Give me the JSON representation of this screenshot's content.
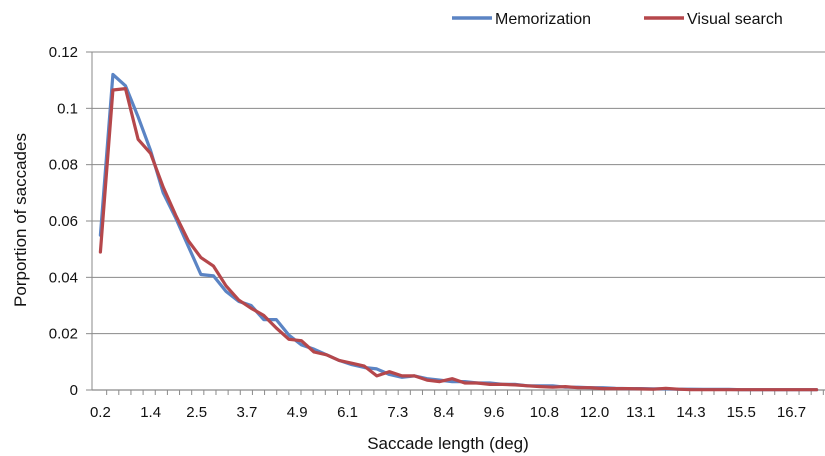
{
  "chart_data": {
    "type": "line",
    "title": "",
    "xlabel": "Saccade length (deg)",
    "ylabel": "Porportion of saccades",
    "ylim": [
      0,
      0.12
    ],
    "y_ticks": [
      "0",
      "0.02",
      "0.04",
      "0.06",
      "0.08",
      "0.1",
      "0.12"
    ],
    "x_tick_labels": [
      "0.2",
      "1.4",
      "2.5",
      "3.7",
      "4.9",
      "6.1",
      "7.3",
      "8.4",
      "9.6",
      "10.8",
      "12.0",
      "13.1",
      "14.3",
      "15.5",
      "16.7"
    ],
    "grid": true,
    "legend": "top-right",
    "x": [
      0.2,
      0.5,
      0.8,
      1.1,
      1.4,
      1.7,
      2.0,
      2.3,
      2.6,
      2.9,
      3.2,
      3.5,
      3.8,
      4.1,
      4.4,
      4.7,
      5.0,
      5.3,
      5.6,
      5.9,
      6.2,
      6.5,
      6.8,
      7.1,
      7.4,
      7.7,
      8.0,
      8.3,
      8.6,
      8.9,
      9.2,
      9.5,
      9.8,
      10.1,
      10.4,
      10.7,
      11.0,
      11.3,
      11.6,
      11.9,
      12.2,
      12.5,
      12.8,
      13.1,
      13.4,
      13.7,
      14.0,
      14.3,
      14.6,
      14.9,
      15.2,
      15.5,
      15.8,
      16.1,
      16.4,
      16.7,
      17.0,
      17.3
    ],
    "series": [
      {
        "name": "Memorization",
        "color": "#5b84c4",
        "values": [
          0.055,
          0.112,
          0.108,
          0.097,
          0.085,
          0.07,
          0.061,
          0.051,
          0.041,
          0.0405,
          0.035,
          0.0315,
          0.03,
          0.025,
          0.025,
          0.0195,
          0.016,
          0.0145,
          0.0125,
          0.0105,
          0.009,
          0.008,
          0.0075,
          0.0055,
          0.0045,
          0.005,
          0.004,
          0.0035,
          0.003,
          0.003,
          0.0025,
          0.0025,
          0.002,
          0.002,
          0.0015,
          0.0015,
          0.0015,
          0.001,
          0.001,
          0.0008,
          0.0008,
          0.0006,
          0.0005,
          0.0005,
          0.0004,
          0.0004,
          0.0003,
          0.0003,
          0.0002,
          0.0002,
          0.0002,
          0.0001,
          0.0001,
          0.0001,
          0.0001,
          0.0001,
          0.0001,
          0.0001
        ]
      },
      {
        "name": "Visual search",
        "color": "#b5474b",
        "values": [
          0.049,
          0.1065,
          0.107,
          0.089,
          0.084,
          0.072,
          0.062,
          0.053,
          0.047,
          0.044,
          0.037,
          0.032,
          0.029,
          0.0265,
          0.022,
          0.018,
          0.0175,
          0.0135,
          0.0125,
          0.0105,
          0.0095,
          0.0085,
          0.005,
          0.0065,
          0.005,
          0.005,
          0.0035,
          0.003,
          0.004,
          0.0025,
          0.0025,
          0.002,
          0.002,
          0.0018,
          0.0015,
          0.0012,
          0.001,
          0.0012,
          0.0008,
          0.0008,
          0.0005,
          0.0005,
          0.0005,
          0.0004,
          0.0003,
          0.0006,
          0.0003,
          0.0001,
          0.0001,
          0.0001,
          0.0001,
          0.0001,
          0.0001,
          0.0001,
          0.0001,
          0.0001,
          0.0001,
          0.0001
        ]
      }
    ]
  }
}
